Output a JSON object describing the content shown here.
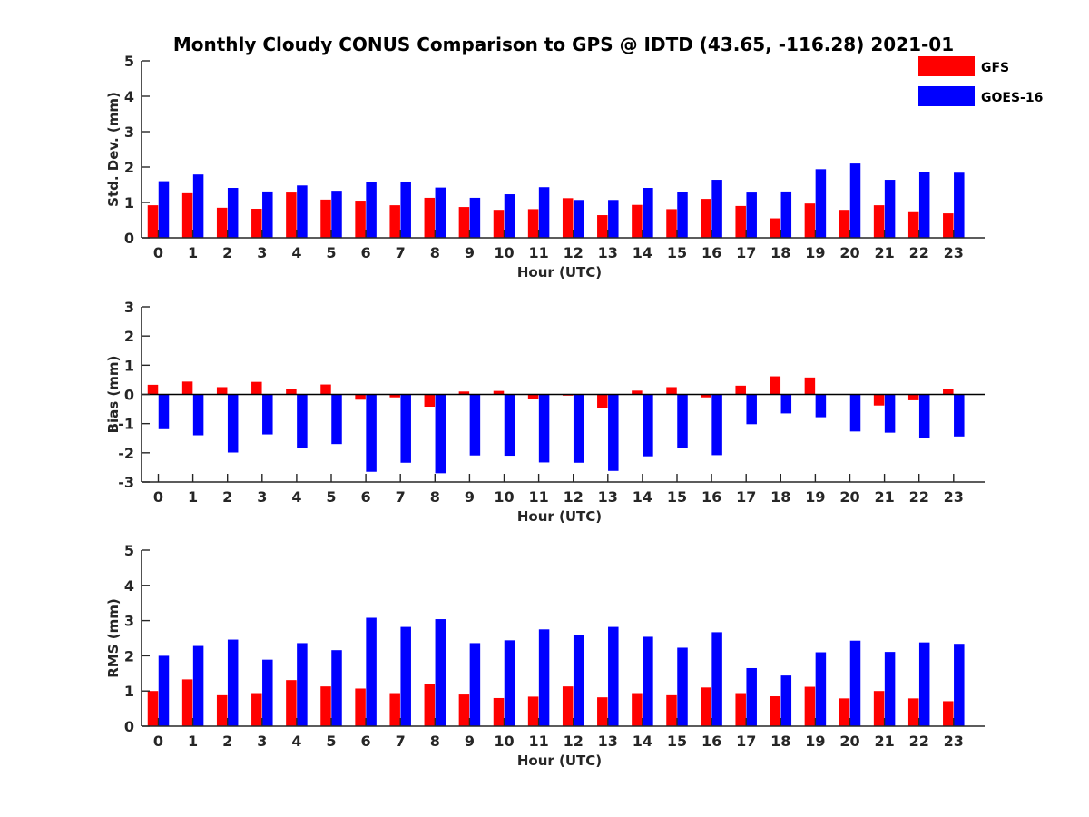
{
  "title": "Monthly Cloudy CONUS Comparison to GPS @ IDTD (43.65, -116.28) 2021-01",
  "legend": [
    {
      "label": "GFS",
      "color": "#ff0000"
    },
    {
      "label": "GOES-16",
      "color": "#0000ff"
    }
  ],
  "colors": {
    "gfs": "#ff0000",
    "goes": "#0000ff",
    "axis": "#262626"
  },
  "chart_data": [
    {
      "type": "bar",
      "xlabel": "Hour (UTC)",
      "ylabel": "Std. Dev. (mm)",
      "ylim": [
        0,
        5
      ],
      "yticks": [
        0,
        1,
        2,
        3,
        4,
        5
      ],
      "categories": [
        "0",
        "1",
        "2",
        "3",
        "4",
        "5",
        "6",
        "7",
        "8",
        "9",
        "10",
        "11",
        "12",
        "13",
        "14",
        "15",
        "16",
        "17",
        "18",
        "19",
        "20",
        "21",
        "22",
        "23"
      ],
      "series": [
        {
          "name": "GFS",
          "values": [
            0.92,
            1.26,
            0.85,
            0.82,
            1.28,
            1.08,
            1.05,
            0.92,
            1.13,
            0.87,
            0.79,
            0.81,
            1.12,
            0.64,
            0.93,
            0.81,
            1.1,
            0.9,
            0.55,
            0.97,
            0.79,
            0.92,
            0.75,
            0.69
          ]
        },
        {
          "name": "GOES-16",
          "values": [
            1.6,
            1.79,
            1.41,
            1.31,
            1.48,
            1.33,
            1.58,
            1.59,
            1.42,
            1.13,
            1.23,
            1.43,
            1.07,
            1.07,
            1.41,
            1.3,
            1.64,
            1.28,
            1.31,
            1.94,
            2.1,
            1.64,
            1.87,
            1.84
          ]
        }
      ]
    },
    {
      "type": "bar",
      "xlabel": "Hour (UTC)",
      "ylabel": "Bias (mm)",
      "ylim": [
        -3,
        3
      ],
      "yticks": [
        -3,
        -2,
        -1,
        0,
        1,
        2,
        3
      ],
      "categories": [
        "0",
        "1",
        "2",
        "3",
        "4",
        "5",
        "6",
        "7",
        "8",
        "9",
        "10",
        "11",
        "12",
        "13",
        "14",
        "15",
        "16",
        "17",
        "18",
        "19",
        "20",
        "21",
        "22",
        "23"
      ],
      "series": [
        {
          "name": "GFS",
          "values": [
            0.33,
            0.44,
            0.25,
            0.43,
            0.19,
            0.34,
            -0.18,
            -0.1,
            -0.42,
            0.1,
            0.12,
            -0.14,
            -0.04,
            -0.48,
            0.13,
            0.25,
            -0.1,
            0.3,
            0.62,
            0.58,
            0.0,
            -0.38,
            -0.2,
            0.19
          ]
        },
        {
          "name": "GOES-16",
          "values": [
            -1.19,
            -1.4,
            -1.99,
            -1.37,
            -1.84,
            -1.7,
            -2.65,
            -2.34,
            -2.7,
            -2.09,
            -2.1,
            -2.33,
            -2.34,
            -2.62,
            -2.12,
            -1.82,
            -2.08,
            -1.02,
            -0.65,
            -0.78,
            -1.27,
            -1.31,
            -1.48,
            -1.44
          ]
        }
      ]
    },
    {
      "type": "bar",
      "xlabel": "Hour (UTC)",
      "ylabel": "RMS (mm)",
      "ylim": [
        0,
        5
      ],
      "yticks": [
        0,
        1,
        2,
        3,
        4,
        5
      ],
      "categories": [
        "0",
        "1",
        "2",
        "3",
        "4",
        "5",
        "6",
        "7",
        "8",
        "9",
        "10",
        "11",
        "12",
        "13",
        "14",
        "15",
        "16",
        "17",
        "18",
        "19",
        "20",
        "21",
        "22",
        "23"
      ],
      "series": [
        {
          "name": "GFS",
          "values": [
            1.0,
            1.33,
            0.88,
            0.94,
            1.31,
            1.13,
            1.07,
            0.94,
            1.21,
            0.9,
            0.8,
            0.84,
            1.13,
            0.82,
            0.94,
            0.88,
            1.1,
            0.94,
            0.85,
            1.12,
            0.79,
            1.0,
            0.79,
            0.71
          ]
        },
        {
          "name": "GOES-16",
          "values": [
            2.0,
            2.28,
            2.46,
            1.89,
            2.36,
            2.16,
            3.08,
            2.82,
            3.04,
            2.36,
            2.44,
            2.75,
            2.59,
            2.82,
            2.54,
            2.23,
            2.67,
            1.65,
            1.44,
            2.1,
            2.43,
            2.11,
            2.38,
            2.34
          ]
        }
      ]
    }
  ]
}
